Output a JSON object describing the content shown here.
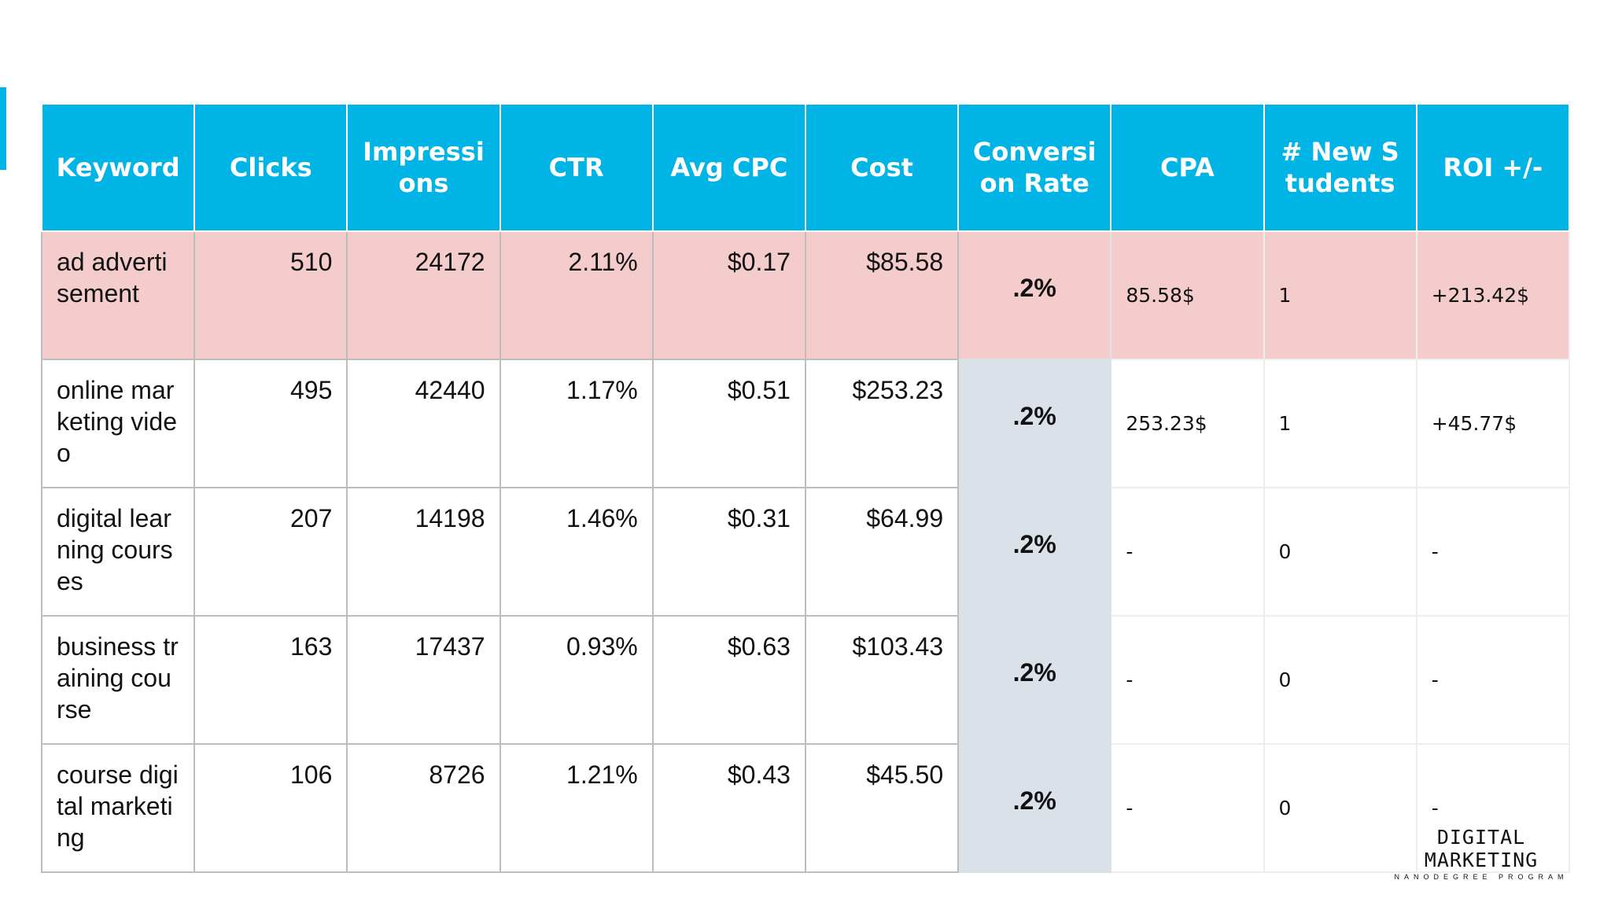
{
  "table": {
    "header": [
      "Keyword",
      "Clicks",
      "Impressions",
      "CTR",
      "Avg CPC",
      "Cost",
      "Conversion Rate",
      "CPA",
      "# New Students",
      "ROI +/-"
    ],
    "rows": [
      [
        "ad advertisement",
        "510",
        "24172",
        "2.11%",
        "$0.17",
        "$85.58",
        ".2%",
        "85.58$",
        "1",
        "+213.42$"
      ],
      [
        "online marketing video",
        "495",
        "42440",
        "1.17%",
        "$0.51",
        "$253.23",
        ".2%",
        "253.23$",
        "1",
        "+45.77$"
      ],
      [
        "digital learning courses",
        "207",
        "14198",
        "1.46%",
        "$0.31",
        "$64.99",
        ".2%",
        "-",
        "0",
        "-"
      ],
      [
        "business training course",
        "163",
        "17437",
        "0.93%",
        "$0.63",
        "$103.43",
        ".2%",
        "-",
        "0",
        "-"
      ],
      [
        "course digital marketing",
        "106",
        "8726",
        "1.21%",
        "$0.43",
        "$45.50",
        ".2%",
        "-",
        "0",
        "-"
      ]
    ]
  },
  "logo": {
    "title": "DIGITAL MARKETING",
    "subtitle": "NANODEGREE PROGRAM"
  }
}
